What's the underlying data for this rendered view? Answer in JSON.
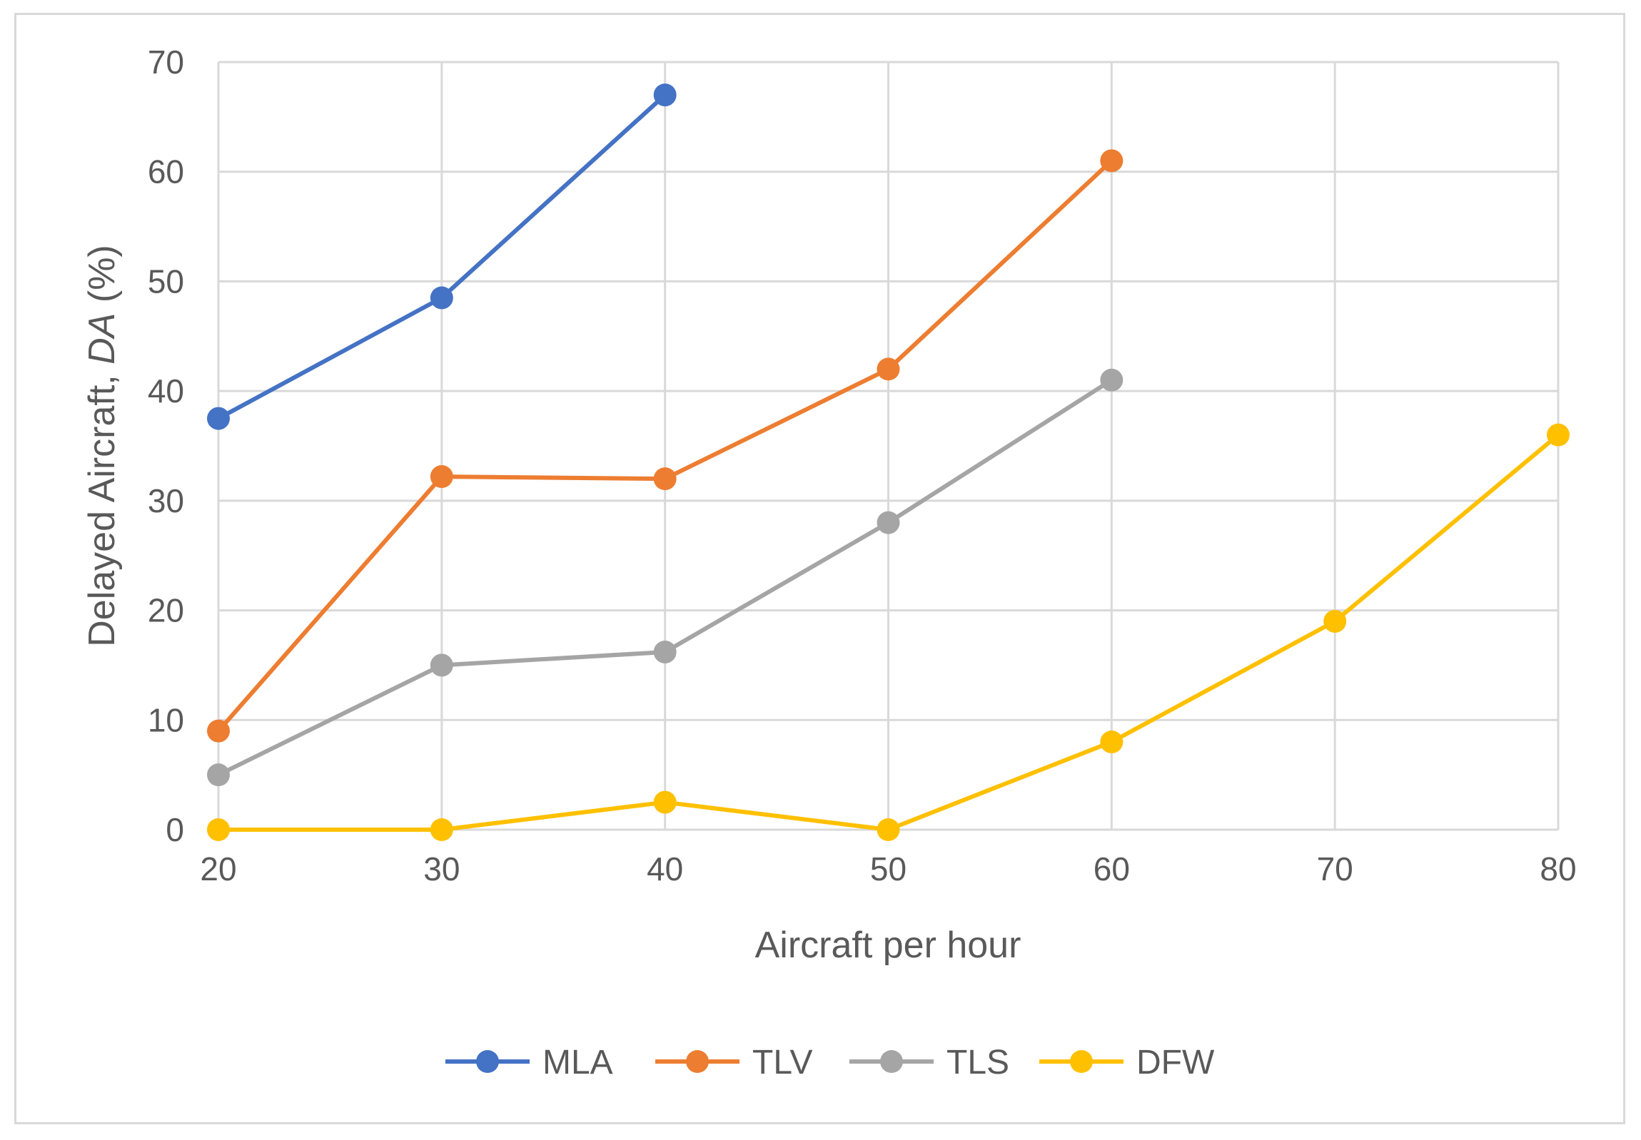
{
  "chart_data": {
    "type": "line",
    "title": "",
    "xlabel": "Aircraft per hour",
    "ylabel": {
      "prefix": "Delayed Aircraft, ",
      "italic": "DA",
      "suffix": " (%)"
    },
    "xlim": [
      20,
      80
    ],
    "ylim": [
      0,
      70
    ],
    "x_ticks": [
      20,
      30,
      40,
      50,
      60,
      70,
      80
    ],
    "y_ticks": [
      0,
      10,
      20,
      30,
      40,
      50,
      60,
      70
    ],
    "grid": true,
    "legend_position": "bottom",
    "series": [
      {
        "name": "MLA",
        "color": "#4472c4",
        "x": [
          20,
          30,
          40
        ],
        "values": [
          37.5,
          48.5,
          67
        ]
      },
      {
        "name": "TLV",
        "color": "#ed7d31",
        "x": [
          20,
          30,
          40,
          50,
          60
        ],
        "values": [
          9,
          32.2,
          32,
          42,
          61
        ]
      },
      {
        "name": "TLS",
        "color": "#a5a5a5",
        "x": [
          20,
          30,
          40,
          50,
          60
        ],
        "values": [
          5,
          15,
          16.2,
          28,
          41
        ]
      },
      {
        "name": "DFW",
        "color": "#ffc000",
        "x": [
          20,
          30,
          40,
          50,
          60,
          70,
          80
        ],
        "values": [
          0,
          0,
          2.5,
          0,
          8,
          19,
          36
        ]
      }
    ]
  }
}
